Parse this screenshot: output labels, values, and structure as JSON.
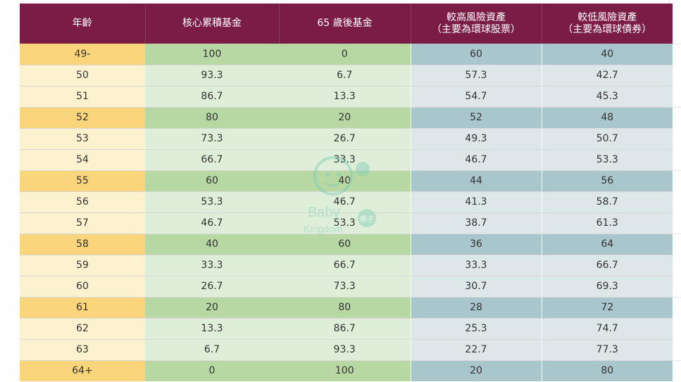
{
  "table": {
    "headers": {
      "age": "年齡",
      "core": "核心累積基金",
      "fund65": "65 歲後基金",
      "high_risk": [
        "較高風險資產",
        "（主要為環球股票）"
      ],
      "low_risk": [
        "較低風險資產",
        "（主要為環球債券）"
      ]
    },
    "rows": [
      {
        "age": "49-",
        "core": "100",
        "fund65": "0",
        "high": "60",
        "low": "40",
        "highlight": true
      },
      {
        "age": "50",
        "core": "93.3",
        "fund65": "6.7",
        "high": "57.3",
        "low": "42.7",
        "highlight": false
      },
      {
        "age": "51",
        "core": "86.7",
        "fund65": "13.3",
        "high": "54.7",
        "low": "45.3",
        "highlight": false
      },
      {
        "age": "52",
        "core": "80",
        "fund65": "20",
        "high": "52",
        "low": "48",
        "highlight": true
      },
      {
        "age": "53",
        "core": "73.3",
        "fund65": "26.7",
        "high": "49.3",
        "low": "50.7",
        "highlight": false
      },
      {
        "age": "54",
        "core": "66.7",
        "fund65": "33.3",
        "high": "46.7",
        "low": "53.3",
        "highlight": false
      },
      {
        "age": "55",
        "core": "60",
        "fund65": "40",
        "high": "44",
        "low": "56",
        "highlight": true
      },
      {
        "age": "56",
        "core": "53.3",
        "fund65": "46.7",
        "high": "41.3",
        "low": "58.7",
        "highlight": false
      },
      {
        "age": "57",
        "core": "46.7",
        "fund65": "53.3",
        "high": "38.7",
        "low": "61.3",
        "highlight": false
      },
      {
        "age": "58",
        "core": "40",
        "fund65": "60",
        "high": "36",
        "low": "64",
        "highlight": true
      },
      {
        "age": "59",
        "core": "33.3",
        "fund65": "66.7",
        "high": "33.3",
        "low": "66.7",
        "highlight": false
      },
      {
        "age": "60",
        "core": "26.7",
        "fund65": "73.3",
        "high": "30.7",
        "low": "69.3",
        "highlight": false
      },
      {
        "age": "61",
        "core": "20",
        "fund65": "80",
        "high": "28",
        "low": "72",
        "highlight": true
      },
      {
        "age": "62",
        "core": "13.3",
        "fund65": "86.7",
        "high": "25.3",
        "low": "74.7",
        "highlight": false
      },
      {
        "age": "63",
        "core": "6.7",
        "fund65": "93.3",
        "high": "22.7",
        "low": "77.3",
        "highlight": false
      },
      {
        "age": "64+",
        "core": "0",
        "fund65": "100",
        "high": "20",
        "low": "80",
        "highlight": true
      }
    ]
  },
  "watermark": {
    "text1": "Baby",
    "text2": "Kingdom",
    "badge": "親子",
    "color": "#7fcfb8"
  },
  "colors": {
    "header": "#7a1c45",
    "age_strong": "#fbd57b",
    "age_light": "#fdf2cf",
    "fund_strong": "#b7d8a3",
    "fund_light": "#dfeed8",
    "asset_strong": "#a9c6cc",
    "asset_light": "#dde7ea"
  }
}
